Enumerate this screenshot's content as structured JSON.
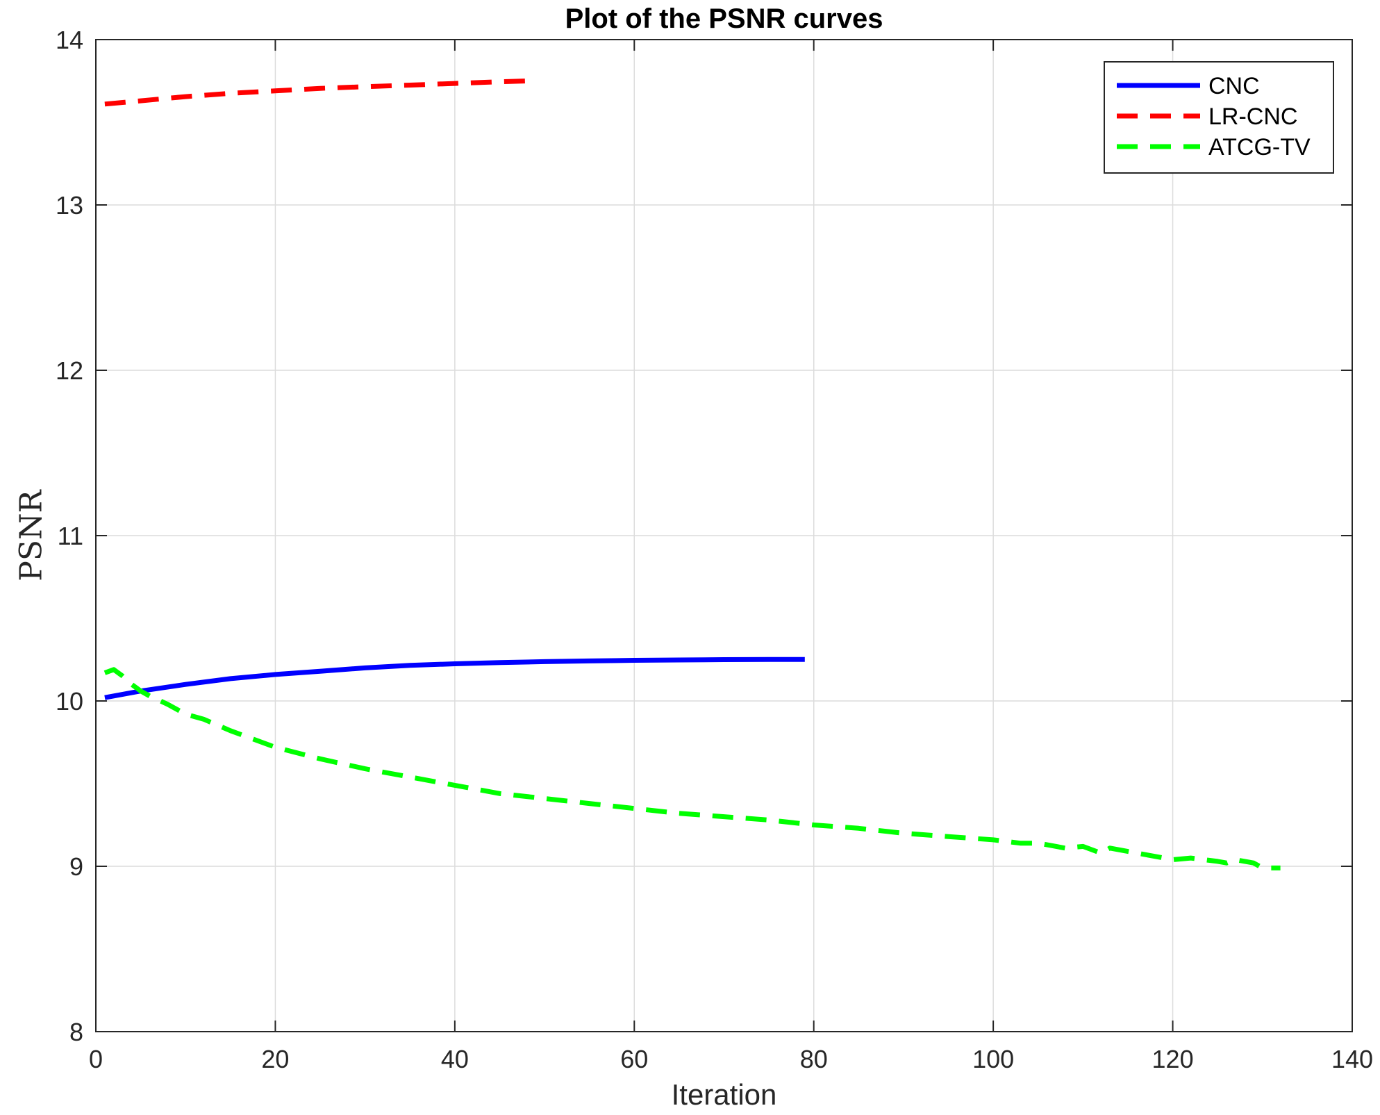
{
  "chart_data": {
    "type": "line",
    "title": "Plot of the PSNR curves",
    "xlabel": "Iteration",
    "ylabel": "PSNR",
    "xlim": [
      0,
      140
    ],
    "ylim": [
      8,
      14
    ],
    "xticks": [
      0,
      20,
      40,
      60,
      80,
      100,
      120,
      140
    ],
    "yticks": [
      8,
      9,
      10,
      11,
      12,
      13,
      14
    ],
    "grid": true,
    "legend_position": "top-right",
    "series": [
      {
        "name": "CNC",
        "color": "#0000ff",
        "style": "solid",
        "x": [
          1,
          5,
          10,
          15,
          20,
          25,
          30,
          35,
          40,
          45,
          50,
          55,
          60,
          65,
          70,
          75,
          79
        ],
        "y": [
          10.02,
          10.06,
          10.1,
          10.135,
          10.16,
          10.18,
          10.2,
          10.215,
          10.225,
          10.232,
          10.238,
          10.242,
          10.246,
          10.248,
          10.25,
          10.251,
          10.251
        ]
      },
      {
        "name": "LR-CNC",
        "color": "#ff0000",
        "style": "dashed",
        "x": [
          1,
          5,
          10,
          15,
          20,
          25,
          30,
          35,
          40,
          45,
          48
        ],
        "y": [
          13.61,
          13.63,
          13.655,
          13.675,
          13.69,
          13.705,
          13.715,
          13.725,
          13.735,
          13.745,
          13.75
        ]
      },
      {
        "name": "ATCG-TV",
        "color": "#00ff00",
        "style": "dashed",
        "x": [
          1,
          2,
          3,
          4,
          5,
          6,
          8,
          10,
          12,
          15,
          20,
          25,
          30,
          35,
          40,
          45,
          50,
          55,
          60,
          65,
          70,
          75,
          80,
          85,
          90,
          95,
          100,
          103,
          105,
          108,
          110,
          112,
          113,
          115,
          117,
          120,
          122,
          125,
          126,
          127,
          129,
          130,
          132
        ],
        "y": [
          10.17,
          10.19,
          10.15,
          10.1,
          10.06,
          10.03,
          9.98,
          9.92,
          9.89,
          9.82,
          9.72,
          9.65,
          9.59,
          9.54,
          9.49,
          9.44,
          9.41,
          9.38,
          9.35,
          9.32,
          9.3,
          9.28,
          9.25,
          9.23,
          9.2,
          9.18,
          9.16,
          9.14,
          9.14,
          9.11,
          9.12,
          9.08,
          9.11,
          9.09,
          9.07,
          9.04,
          9.05,
          9.03,
          9.02,
          9.04,
          9.02,
          8.99,
          8.99
        ]
      }
    ]
  }
}
